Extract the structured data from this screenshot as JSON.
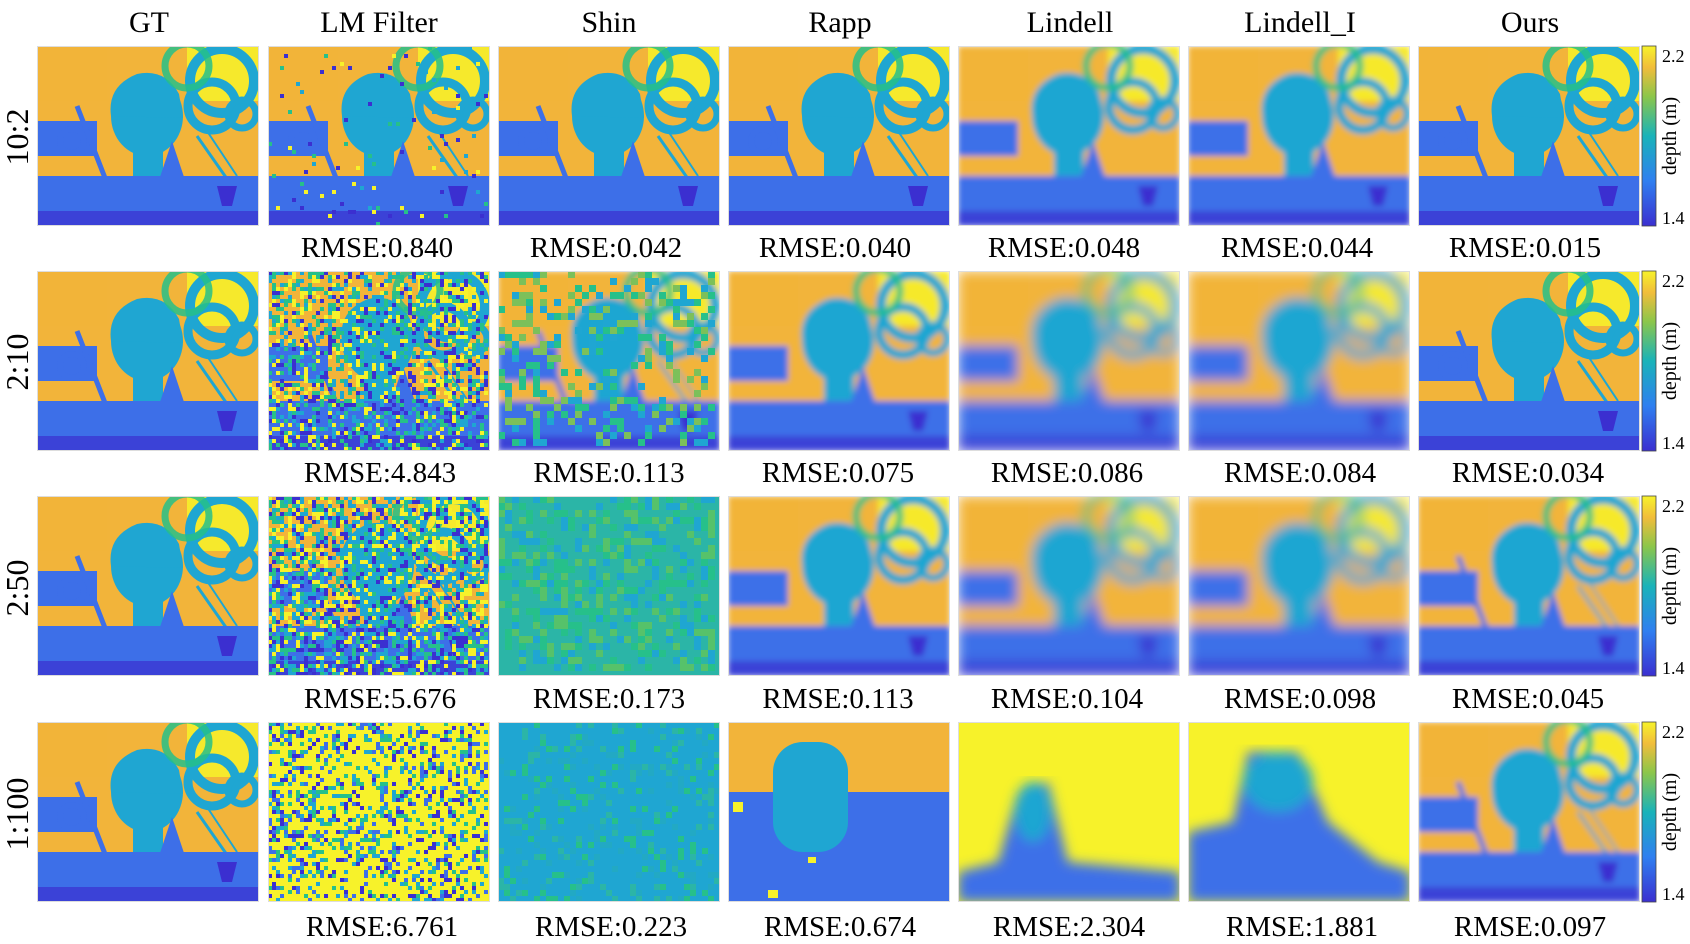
{
  "columns": [
    "GT",
    "LM Filter",
    "Shin",
    "Rapp",
    "Lindell",
    "Lindell_I",
    "Ours"
  ],
  "rows": [
    {
      "label": "10:2",
      "rmse": [
        "RMSE:0.840",
        "RMSE:0.042",
        "RMSE:0.040",
        "RMSE:0.048",
        "RMSE:0.044",
        "RMSE:0.015"
      ],
      "lm_noise": 0.04,
      "shin_noise": 0.0,
      "quality": [
        1.0,
        0.92,
        0.9,
        0.88,
        0.9,
        0.97
      ],
      "flat_shift": [
        0,
        0,
        0,
        0,
        0,
        0
      ]
    },
    {
      "label": "2:10",
      "rmse": [
        "RMSE:4.843",
        "RMSE:0.113",
        "RMSE:0.075",
        "RMSE:0.086",
        "RMSE:0.084",
        "RMSE:0.034"
      ],
      "lm_noise": 0.55,
      "shin_noise": 0.25,
      "quality": [
        1.0,
        0.55,
        0.55,
        0.45,
        0.45,
        0.9
      ],
      "flat_shift": [
        0,
        0,
        0,
        0,
        0,
        0
      ]
    },
    {
      "label": "2:50",
      "rmse": [
        "RMSE:5.676",
        "RMSE:0.173",
        "RMSE:0.113",
        "RMSE:0.104",
        "RMSE:0.098",
        "RMSE:0.045"
      ],
      "lm_noise": 0.7,
      "shin_noise": 0.6,
      "quality": [
        1.0,
        0.3,
        0.4,
        0.35,
        0.35,
        0.8
      ],
      "flat_shift": [
        0,
        0,
        0,
        0,
        0,
        0
      ]
    },
    {
      "label": "1:100",
      "rmse": [
        "RMSE:6.761",
        "RMSE:0.223",
        "RMSE:0.674",
        "RMSE:2.304",
        "RMSE:1.881",
        "RMSE:0.097"
      ],
      "lm_noise": 0.95,
      "shin_noise": 0.95,
      "quality": [
        1.0,
        0.0,
        0.3,
        0.15,
        0.2,
        0.6
      ],
      "flat_shift": [
        0,
        0,
        0,
        0,
        0,
        0
      ]
    }
  ],
  "colorbar": {
    "max_label": "2.2",
    "min_label": "1.4",
    "axis_label": "depth (m)"
  },
  "colors": {
    "deep": "#3b2fd0",
    "blue": "#3d6fe8",
    "teal": "#1fa6d2",
    "green": "#26c08a",
    "orange": "#f2b43a",
    "yellow": "#f7f22a"
  }
}
